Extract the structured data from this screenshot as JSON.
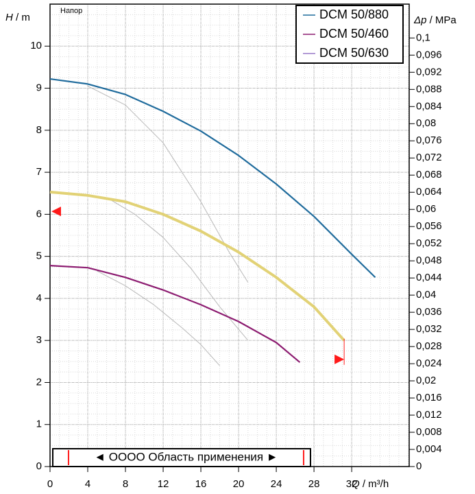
{
  "chart_data": {
    "type": "line",
    "corner_label": "Напор",
    "y_label_symbol": "H",
    "y_label_unit": " / m",
    "y2_label_symbol": "Δp",
    "y2_label_unit": " / MPa",
    "x_label_symbol": "Q",
    "x_label_unit": " / m³/h",
    "xlim": [
      0,
      38.1
    ],
    "ylim": [
      0,
      11
    ],
    "y2lim": [
      0,
      0.1079
    ],
    "xticks": [
      0,
      4,
      8,
      12,
      16,
      20,
      24,
      28,
      32
    ],
    "yticks": [
      0,
      1,
      2,
      3,
      4,
      5,
      6,
      7,
      8,
      9,
      10
    ],
    "y2ticks": [
      0,
      {
        "value": 0.004,
        "label": "0,004"
      },
      {
        "value": 0.008,
        "label": "0,008"
      },
      {
        "value": 0.012,
        "label": "0,012"
      },
      {
        "value": 0.016,
        "label": "0,016"
      },
      {
        "value": 0.02,
        "label": "0,02"
      },
      {
        "value": 0.024,
        "label": "0,024"
      },
      {
        "value": 0.028,
        "label": "0,028"
      },
      {
        "value": 0.032,
        "label": "0,032"
      },
      {
        "value": 0.036,
        "label": "0,036"
      },
      {
        "value": 0.04,
        "label": "0,04"
      },
      {
        "value": 0.044,
        "label": "0,044"
      },
      {
        "value": 0.048,
        "label": "0,048"
      },
      {
        "value": 0.052,
        "label": "0,052"
      },
      {
        "value": 0.056,
        "label": "0,056"
      },
      {
        "value": 0.06,
        "label": "0,06"
      },
      {
        "value": 0.064,
        "label": "0,064"
      },
      {
        "value": 0.068,
        "label": "0,068"
      },
      {
        "value": 0.072,
        "label": "0,072"
      },
      {
        "value": 0.076,
        "label": "0,076"
      },
      {
        "value": 0.08,
        "label": "0,08"
      },
      {
        "value": 0.084,
        "label": "0,084"
      },
      {
        "value": 0.088,
        "label": "0,088"
      },
      {
        "value": 0.092,
        "label": "0,092"
      },
      {
        "value": 0.096,
        "label": "0,096"
      },
      {
        "value": 0.1,
        "label": "0,1"
      }
    ],
    "grid": true,
    "x_minor_step": 1,
    "y_minor_step": 0.25,
    "series": [
      {
        "name": "DCM 50/880",
        "color": "#1f6b9c",
        "width": 2.2,
        "x": [
          0,
          4,
          8,
          12,
          16,
          20,
          24,
          28,
          32,
          34.5
        ],
        "values": [
          9.22,
          9.1,
          8.85,
          8.45,
          7.98,
          7.4,
          6.72,
          5.95,
          5.05,
          4.5
        ]
      },
      {
        "name": "DCM 50/460",
        "color": "#8c1b70",
        "width": 2.2,
        "x": [
          0,
          4,
          8,
          12,
          16,
          20,
          24,
          26.5
        ],
        "values": [
          4.78,
          4.73,
          4.5,
          4.2,
          3.85,
          3.45,
          2.95,
          2.48
        ]
      },
      {
        "name": "DCM 50/630",
        "color": "#e2d276",
        "legend_color": "#9a7cc8",
        "width": 4,
        "x": [
          0,
          4,
          8,
          12,
          16,
          20,
          24,
          28,
          31.2
        ],
        "values": [
          6.53,
          6.45,
          6.3,
          6.0,
          5.6,
          5.1,
          4.5,
          3.8,
          3.0
        ]
      }
    ],
    "reference_curves": {
      "color": "#b8b8b8",
      "lines": [
        {
          "x": [
            4,
            8,
            12,
            16,
            19,
            21
          ],
          "values": [
            9.05,
            8.6,
            7.7,
            6.3,
            5.1,
            4.38
          ]
        },
        {
          "x": [
            6,
            9,
            12,
            15,
            18,
            21
          ],
          "values": [
            6.4,
            6.0,
            5.45,
            4.7,
            3.8,
            3.0
          ]
        },
        {
          "x": [
            5,
            8,
            11,
            14,
            16,
            18
          ],
          "values": [
            4.65,
            4.3,
            3.85,
            3.3,
            2.9,
            2.4
          ]
        }
      ]
    },
    "range": {
      "label": "◄ OOOO Область применения ►",
      "start": 1.96,
      "end": 26.9
    },
    "head_marker": 6.07,
    "flow_marker": {
      "x": 31.2,
      "y": 2.55
    },
    "marker_color": "#ff1a1a"
  }
}
